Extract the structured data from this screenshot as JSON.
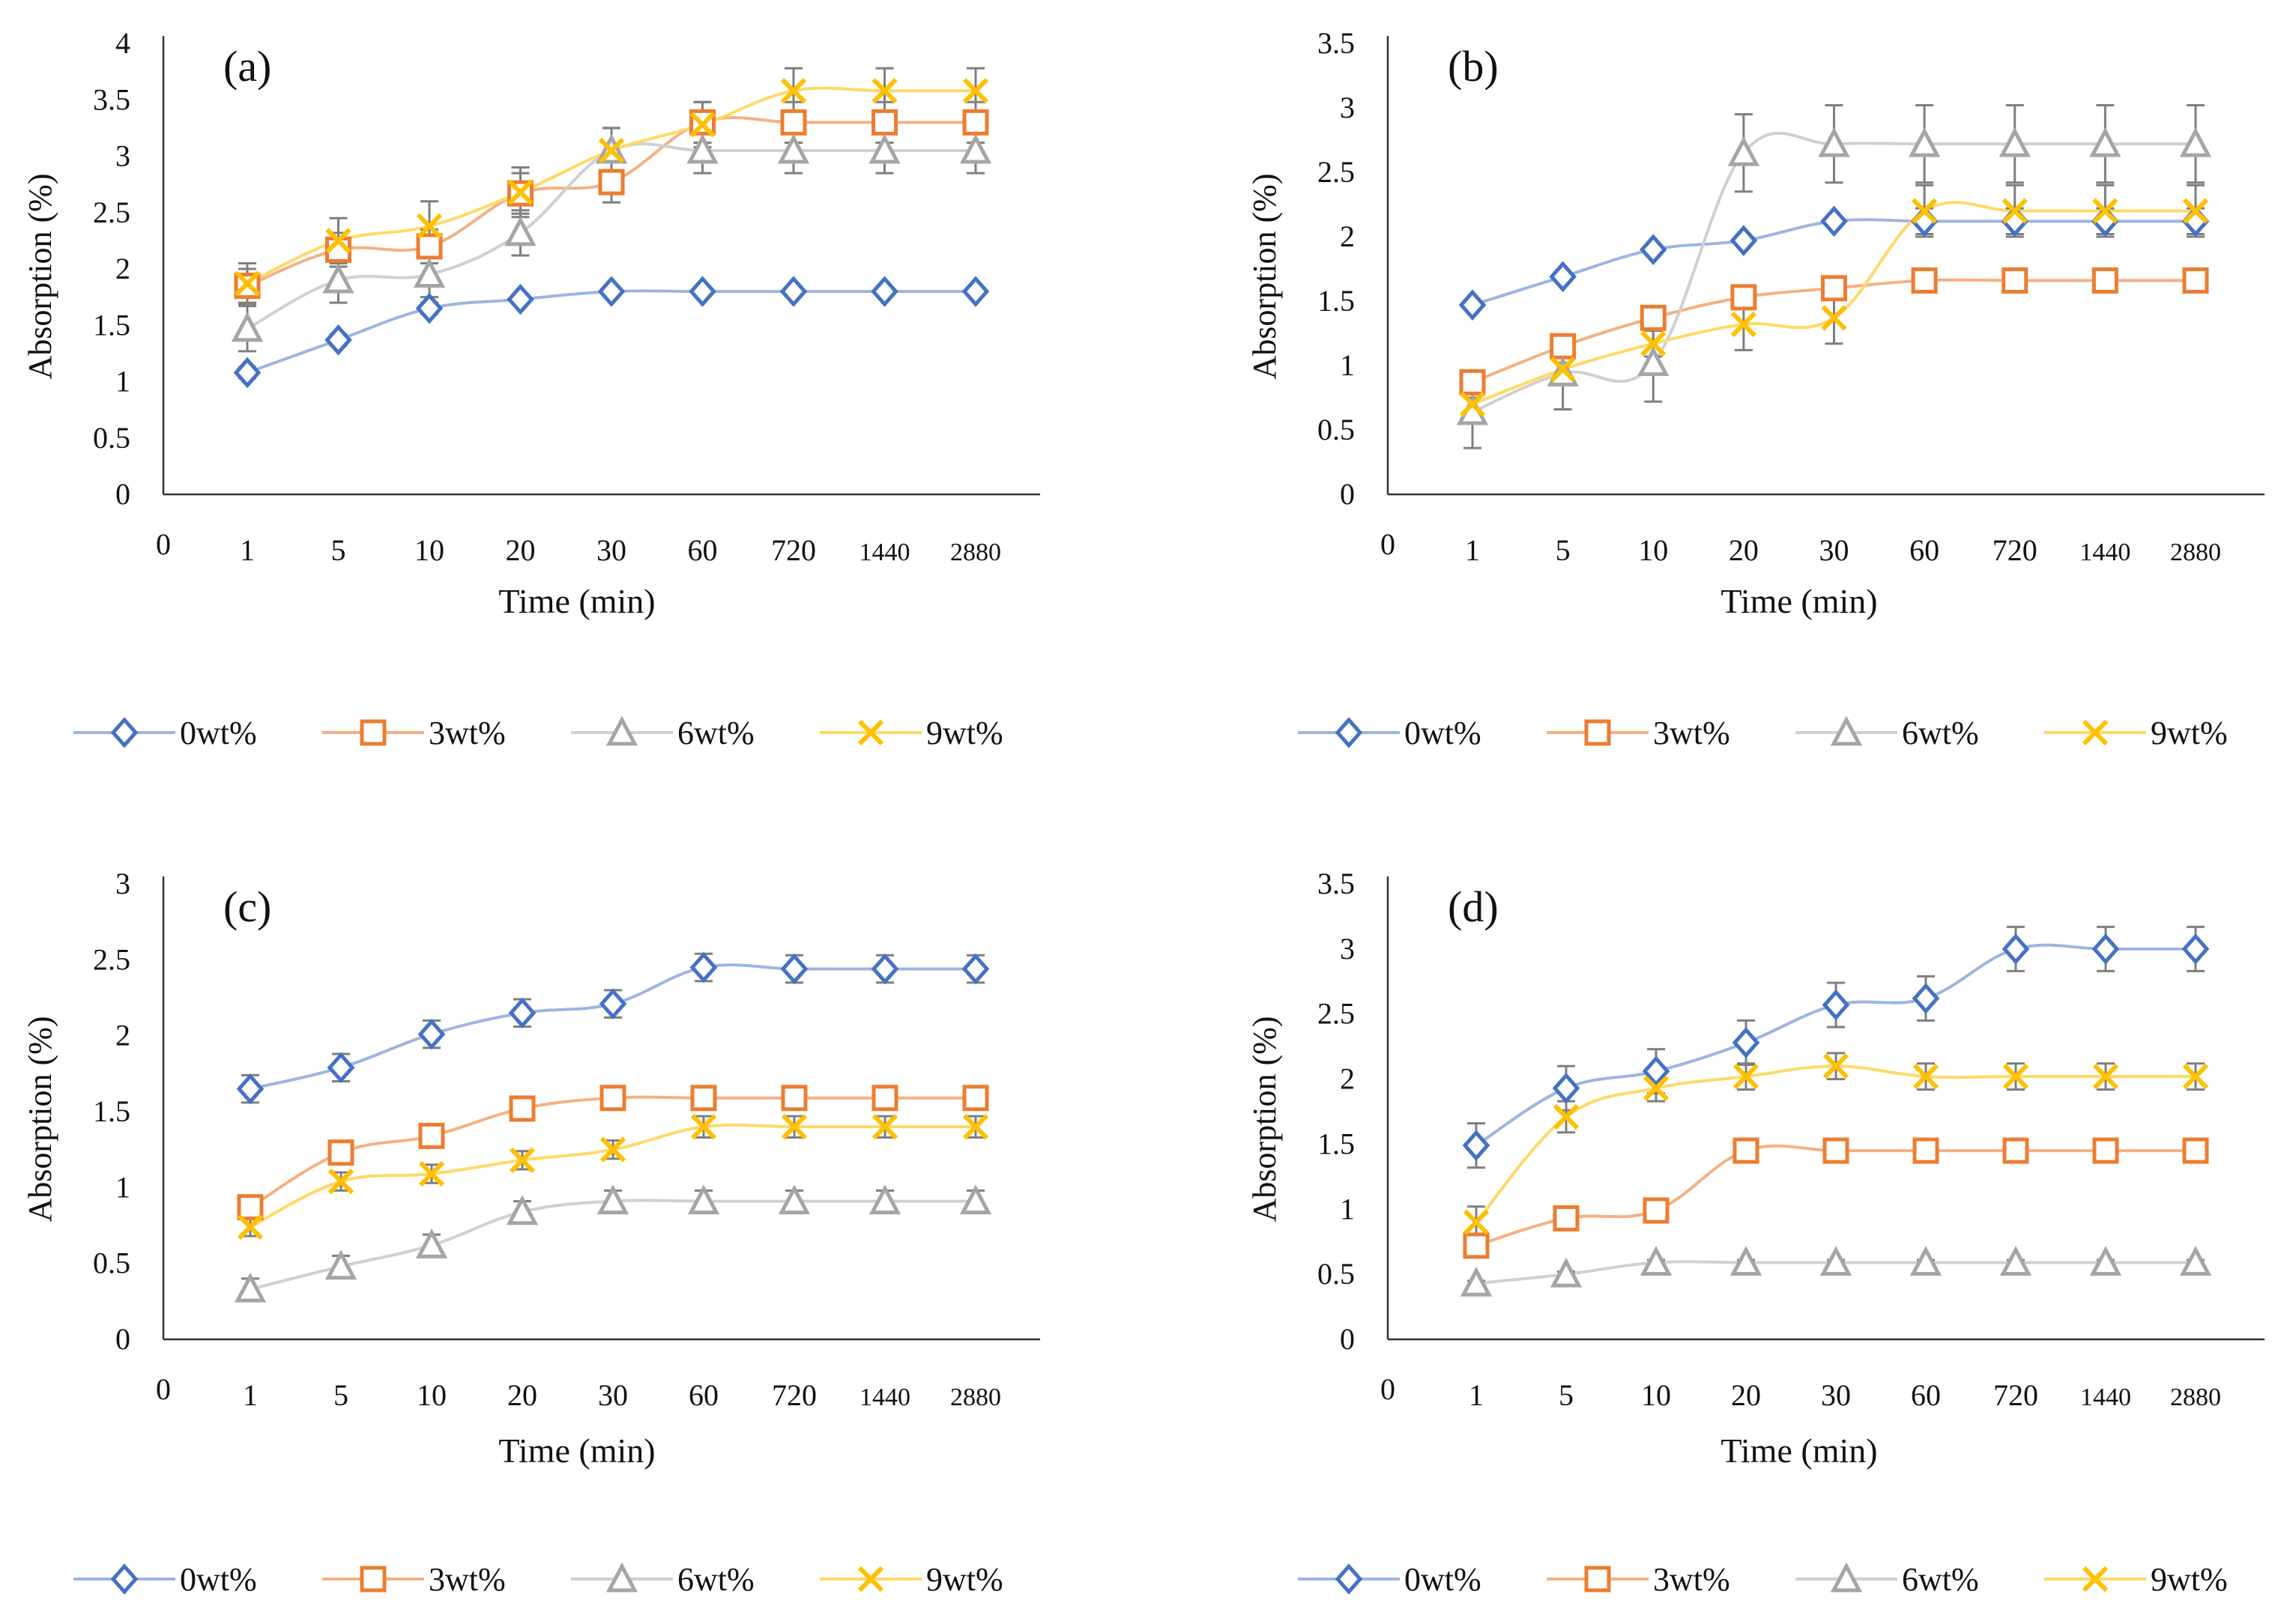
{
  "chart_data": [
    {
      "panel_label": "(a)",
      "type": "line",
      "categories": [
        "1",
        "5",
        "10",
        "20",
        "30",
        "60",
        "720",
        "1440",
        "2880"
      ],
      "x_origin_label": "0",
      "xlabel": "Time (min)",
      "ylabel": "Absorption (%)",
      "ylim": [
        0,
        4
      ],
      "yticks": [
        "0",
        "0.5",
        "1",
        "1.5",
        "2",
        "2.5",
        "3",
        "3.5",
        "4"
      ],
      "grid": false,
      "legend_position": "bottom",
      "series": [
        {
          "name": "0wt%",
          "marker": "diamond",
          "color": "#4472C4",
          "line_color": "#9DB5E0",
          "values": [
            1.08,
            1.37,
            1.65,
            1.73,
            1.8,
            1.8,
            1.8,
            1.8,
            1.8
          ],
          "errors": [
            0.05,
            0.05,
            0.05,
            0.04,
            0.03,
            0.03,
            0.03,
            0.03,
            0.03
          ]
        },
        {
          "name": "3wt%",
          "marker": "square",
          "color": "#ED7D31",
          "line_color": "#F4B183",
          "values": [
            1.85,
            2.17,
            2.2,
            2.67,
            2.77,
            3.3,
            3.3,
            3.3,
            3.3
          ],
          "errors": [
            0.15,
            0.15,
            0.15,
            0.18,
            0.18,
            0.18,
            0.18,
            0.18,
            0.18
          ]
        },
        {
          "name": "6wt%",
          "marker": "triangle",
          "color": "#A5A5A5",
          "line_color": "#D0D0D0",
          "values": [
            1.47,
            1.9,
            1.95,
            2.32,
            3.05,
            3.05,
            3.05,
            3.05,
            3.05
          ],
          "errors": [
            0.2,
            0.2,
            0.2,
            0.2,
            0.2,
            0.2,
            0.2,
            0.2,
            0.2
          ]
        },
        {
          "name": "9wt%",
          "marker": "x",
          "color": "#FFC000",
          "line_color": "#FFD966",
          "values": [
            1.87,
            2.25,
            2.38,
            2.68,
            3.05,
            3.28,
            3.58,
            3.58,
            3.58
          ],
          "errors": [
            0.18,
            0.2,
            0.22,
            0.22,
            0.2,
            0.2,
            0.2,
            0.2,
            0.2
          ]
        }
      ]
    },
    {
      "panel_label": "(b)",
      "type": "line",
      "categories": [
        "1",
        "5",
        "10",
        "20",
        "30",
        "60",
        "720",
        "1440",
        "2880"
      ],
      "x_origin_label": "0",
      "xlabel": "Time (min)",
      "ylabel": "Absorption (%)",
      "ylim": [
        0,
        3.5
      ],
      "yticks": [
        "0",
        "0.5",
        "1",
        "1.5",
        "2",
        "2.5",
        "3",
        "3.5"
      ],
      "grid": false,
      "legend_position": "bottom",
      "series": [
        {
          "name": "0wt%",
          "marker": "diamond",
          "color": "#4472C4",
          "line_color": "#9DB5E0",
          "values": [
            1.47,
            1.69,
            1.9,
            1.97,
            2.12,
            2.12,
            2.12,
            2.12,
            2.12
          ],
          "errors": [
            0.03,
            0.03,
            0.03,
            0.03,
            0.03,
            0.1,
            0.1,
            0.1,
            0.1
          ]
        },
        {
          "name": "3wt%",
          "marker": "square",
          "color": "#ED7D31",
          "line_color": "#F4B183",
          "values": [
            0.87,
            1.15,
            1.37,
            1.53,
            1.6,
            1.66,
            1.66,
            1.66,
            1.66
          ],
          "errors": [
            0.05,
            0.05,
            0.05,
            0.05,
            0.05,
            0.05,
            0.05,
            0.05,
            0.05
          ]
        },
        {
          "name": "6wt%",
          "marker": "triangle",
          "color": "#A5A5A5",
          "line_color": "#D0D0D0",
          "values": [
            0.64,
            0.94,
            1.02,
            2.65,
            2.72,
            2.72,
            2.72,
            2.72,
            2.72
          ],
          "errors": [
            0.28,
            0.28,
            0.3,
            0.3,
            0.3,
            0.3,
            0.3,
            0.3,
            0.3
          ]
        },
        {
          "name": "9wt%",
          "marker": "x",
          "color": "#FFC000",
          "line_color": "#FFD966",
          "values": [
            0.7,
            0.97,
            1.17,
            1.32,
            1.37,
            2.2,
            2.2,
            2.2,
            2.2
          ],
          "errors": [
            0.05,
            0.05,
            0.1,
            0.2,
            0.2,
            0.2,
            0.2,
            0.2,
            0.2
          ]
        }
      ]
    },
    {
      "panel_label": "(c)",
      "type": "line",
      "categories": [
        "1",
        "5",
        "10",
        "20",
        "30",
        "60",
        "720",
        "1440",
        "2880"
      ],
      "x_origin_label": "0",
      "xlabel": "Time (min)",
      "ylabel": "Absorption (%)",
      "ylim": [
        0,
        3
      ],
      "yticks": [
        "0",
        "0.5",
        "1",
        "1.5",
        "2",
        "2.5",
        "3"
      ],
      "grid": false,
      "legend_position": "bottom",
      "series": [
        {
          "name": "0wt%",
          "marker": "diamond",
          "color": "#4472C4",
          "line_color": "#9DB5E0",
          "values": [
            1.65,
            1.79,
            2.01,
            2.15,
            2.21,
            2.45,
            2.44,
            2.44,
            2.44
          ],
          "errors": [
            0.09,
            0.09,
            0.09,
            0.09,
            0.09,
            0.09,
            0.09,
            0.09,
            0.09
          ]
        },
        {
          "name": "3wt%",
          "marker": "square",
          "color": "#ED7D31",
          "line_color": "#F4B183",
          "values": [
            0.87,
            1.23,
            1.34,
            1.52,
            1.59,
            1.59,
            1.59,
            1.59,
            1.59
          ],
          "errors": [
            0.05,
            0.05,
            0.05,
            0.05,
            0.05,
            0.05,
            0.05,
            0.05,
            0.05
          ]
        },
        {
          "name": "6wt%",
          "marker": "triangle",
          "color": "#A5A5A5",
          "line_color": "#D0D0D0",
          "values": [
            0.33,
            0.48,
            0.62,
            0.84,
            0.91,
            0.91,
            0.91,
            0.91,
            0.91
          ],
          "errors": [
            0.07,
            0.07,
            0.07,
            0.07,
            0.07,
            0.07,
            0.07,
            0.07,
            0.07
          ]
        },
        {
          "name": "9wt%",
          "marker": "x",
          "color": "#FFC000",
          "line_color": "#FFD966",
          "values": [
            0.74,
            1.04,
            1.09,
            1.18,
            1.25,
            1.4,
            1.4,
            1.4,
            1.4
          ],
          "errors": [
            0.06,
            0.06,
            0.06,
            0.06,
            0.06,
            0.07,
            0.07,
            0.07,
            0.07
          ]
        }
      ]
    },
    {
      "panel_label": "(d)",
      "type": "line",
      "categories": [
        "1",
        "5",
        "10",
        "20",
        "30",
        "60",
        "720",
        "1440",
        "2880"
      ],
      "x_origin_label": "0",
      "xlabel": "Time (min)",
      "ylabel": "Absorption (%)",
      "ylim": [
        0,
        3.5
      ],
      "yticks": [
        "0",
        "0.5",
        "1",
        "1.5",
        "2",
        "2.5",
        "3",
        "3.5"
      ],
      "grid": false,
      "legend_position": "bottom",
      "series": [
        {
          "name": "0wt%",
          "marker": "diamond",
          "color": "#4472C4",
          "line_color": "#9DB5E0",
          "values": [
            1.49,
            1.93,
            2.06,
            2.28,
            2.57,
            2.62,
            3.0,
            3.0,
            3.0
          ],
          "errors": [
            0.17,
            0.17,
            0.17,
            0.17,
            0.17,
            0.17,
            0.17,
            0.17,
            0.17
          ]
        },
        {
          "name": "3wt%",
          "marker": "square",
          "color": "#ED7D31",
          "line_color": "#F4B183",
          "values": [
            0.72,
            0.93,
            0.99,
            1.45,
            1.45,
            1.45,
            1.45,
            1.45,
            1.45
          ],
          "errors": [
            0.03,
            0.03,
            0.03,
            0.03,
            0.03,
            0.03,
            0.03,
            0.03,
            0.03
          ]
        },
        {
          "name": "6wt%",
          "marker": "triangle",
          "color": "#A5A5A5",
          "line_color": "#D0D0D0",
          "values": [
            0.43,
            0.5,
            0.59,
            0.59,
            0.59,
            0.59,
            0.59,
            0.59,
            0.59
          ],
          "errors": [
            0.02,
            0.02,
            0.02,
            0.02,
            0.02,
            0.02,
            0.02,
            0.02,
            0.02
          ]
        },
        {
          "name": "9wt%",
          "marker": "x",
          "color": "#FFC000",
          "line_color": "#FFD966",
          "values": [
            0.9,
            1.71,
            1.93,
            2.02,
            2.1,
            2.02,
            2.02,
            2.02,
            2.02
          ],
          "errors": [
            0.12,
            0.12,
            0.1,
            0.1,
            0.1,
            0.1,
            0.1,
            0.1,
            0.1
          ]
        }
      ]
    }
  ]
}
